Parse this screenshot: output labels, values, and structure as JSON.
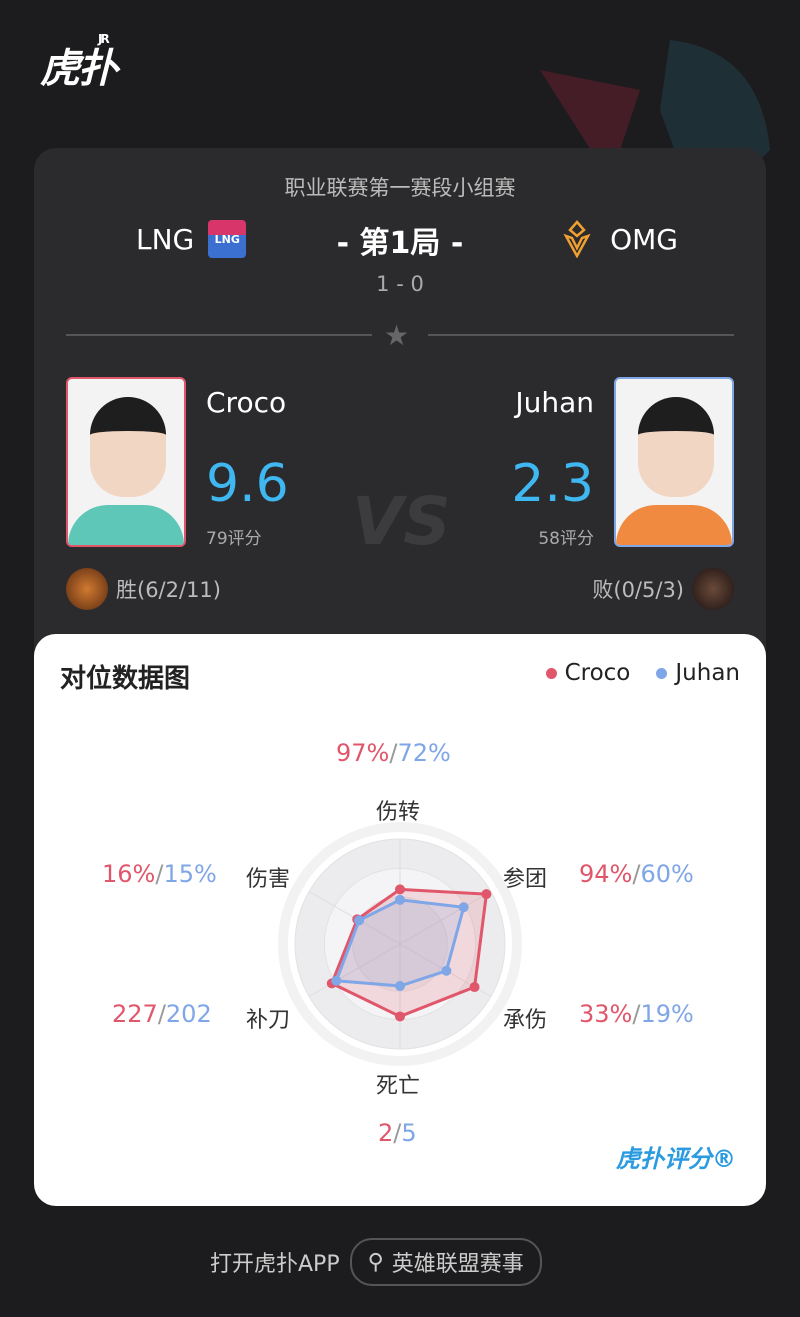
{
  "brand": {
    "logo": "虎扑",
    "logo_sup": "JR"
  },
  "match": {
    "stage": "职业联赛第一赛段小组赛",
    "game": "- 第1局 -",
    "score": "1 - 0",
    "team_left": {
      "name": "LNG",
      "logo_text": "LNG"
    },
    "team_right": {
      "name": "OMG"
    }
  },
  "players": {
    "left": {
      "name": "Croco",
      "rating": "9.6",
      "rating_count": "79评分",
      "result": "胜(6/2/11)"
    },
    "right": {
      "name": "Juhan",
      "rating": "2.3",
      "rating_count": "58评分",
      "result": "败(0/5/3)"
    },
    "vs": "VS"
  },
  "chart_data": {
    "type": "radar",
    "title": "对位数据图",
    "legend": [
      {
        "name": "Croco",
        "color": "#e0566a"
      },
      {
        "name": "Juhan",
        "color": "#7fa6e6"
      }
    ],
    "axes": [
      "伤转",
      "参团",
      "承伤",
      "死亡",
      "补刀",
      "伤害"
    ],
    "series": [
      {
        "name": "Croco",
        "values": [
          "97%",
          "94%",
          "33%",
          "2",
          "227",
          "16%"
        ]
      },
      {
        "name": "Juhan",
        "values": [
          "72%",
          "60%",
          "19%",
          "5",
          "202",
          "15%"
        ]
      }
    ],
    "separator": "/"
  },
  "watermark": "虎扑评分®",
  "footer": {
    "open_app": "打开虎扑APP",
    "search_label": "英雄联盟赛事"
  },
  "colors": {
    "accent_red": "#e0566a",
    "accent_blue": "#7fa6e6",
    "rating": "#3fb7f0"
  }
}
